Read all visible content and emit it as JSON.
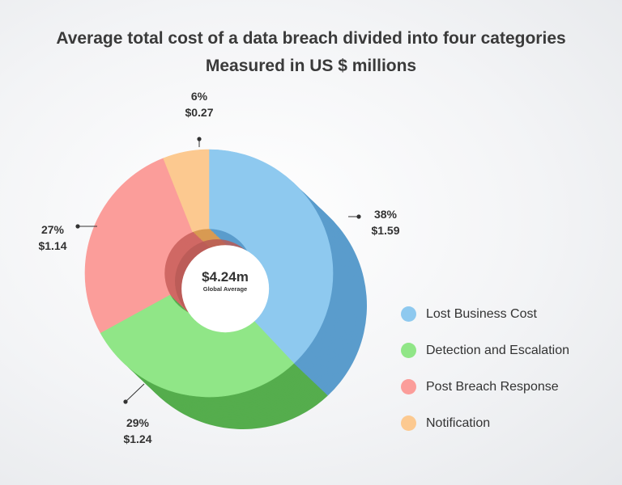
{
  "title": "Average total cost of a data breach divided into four categories",
  "subtitle": "Measured in US $ millions",
  "center": {
    "value": "$4.24m",
    "caption": "Global Average"
  },
  "chart_data": {
    "type": "pie",
    "variant": "donut",
    "title": "Average total cost of a data breach divided into four categories",
    "subtitle": "Measured in US $ millions",
    "total_label": "$4.24m",
    "total_caption": "Global Average",
    "legend_position": "right",
    "slices": [
      {
        "name": "Lost Business Cost",
        "percent": 38,
        "percent_label": "38%",
        "value": 1.59,
        "value_label": "$1.59",
        "color": "#8ec9ef",
        "side": "#5a9ccc"
      },
      {
        "name": "Detection and Escalation",
        "percent": 29,
        "percent_label": "29%",
        "value": 1.24,
        "value_label": "$1.24",
        "color": "#90e687",
        "side": "#55ad4d"
      },
      {
        "name": "Post Breach Response",
        "percent": 27,
        "percent_label": "27%",
        "value": 1.14,
        "value_label": "$1.14",
        "color": "#fb9d9a",
        "side": "#d06864"
      },
      {
        "name": "Notification",
        "percent": 6,
        "percent_label": "6%",
        "value": 0.27,
        "value_label": "$0.27",
        "color": "#fcc990",
        "side": "#d89a52"
      }
    ]
  },
  "legend": [
    {
      "label": "Lost Business Cost",
      "color": "#8ec9ef"
    },
    {
      "label": "Detection and Escalation",
      "color": "#90e687"
    },
    {
      "label": "Post Breach Response",
      "color": "#fb9d9a"
    },
    {
      "label": "Notification",
      "color": "#fcc990"
    }
  ]
}
